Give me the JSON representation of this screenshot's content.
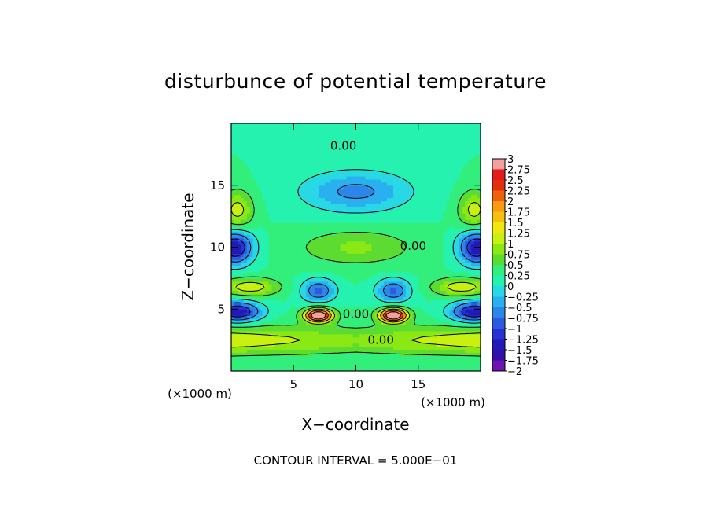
{
  "chart_data": {
    "type": "heatmap",
    "title": "disturbunce of potential temperature",
    "xlabel": "X−coordinate",
    "ylabel": "Z−coordinate",
    "x_unit": "(×1000 m)",
    "y_unit": "(×1000 m)",
    "xlim": [
      0,
      20
    ],
    "ylim": [
      0,
      20
    ],
    "x_ticks": [
      5,
      10,
      15
    ],
    "y_ticks": [
      5,
      10,
      15
    ],
    "x_tick_labels": [
      "5",
      "10",
      "15"
    ],
    "y_tick_labels": [
      "5",
      "10",
      "15"
    ],
    "footer": "CONTOUR INTERVAL = 5.000E−01",
    "contour_interval": 0.5,
    "colorbar": {
      "min": -2,
      "max": 3,
      "step": 0.25,
      "labels": [
        "3",
        "2.75",
        "2.5",
        "2.25",
        "2",
        "1.75",
        "1.5",
        "1.25",
        "1",
        "0.75",
        "0.5",
        "0.25",
        "0",
        "−0.25",
        "−0.5",
        "−0.75",
        "−1",
        "−1.25",
        "−1.5",
        "−1.75",
        "−2"
      ],
      "colors": [
        "#f4a0a0",
        "#e21c1c",
        "#e03010",
        "#ee6010",
        "#fa9a10",
        "#f6c010",
        "#f2e610",
        "#c8f010",
        "#8ae814",
        "#5cdc30",
        "#32ee7a",
        "#26f2b0",
        "#28d8e4",
        "#2ab0ee",
        "#2c86ea",
        "#2a5ce0",
        "#2632d4",
        "#221ab8",
        "#3010a8",
        "#6e12b4"
      ]
    },
    "contour_labels": [
      {
        "text": "0.00",
        "x": 9.0,
        "z": 18.2
      },
      {
        "text": "0.00",
        "x": 14.6,
        "z": 10.1
      },
      {
        "text": "0.00",
        "x": 10.0,
        "z": 4.6
      },
      {
        "text": "0.00",
        "x": 12.0,
        "z": 2.5
      }
    ],
    "features": [
      {
        "kind": "max",
        "x": 7.0,
        "z": 4.5,
        "peak": 3.0,
        "sx": 1.1,
        "sz": 0.55
      },
      {
        "kind": "max",
        "x": 13.0,
        "z": 4.5,
        "peak": 3.0,
        "sx": 1.1,
        "sz": 0.55
      },
      {
        "kind": "min",
        "x": 0.3,
        "z": 10.0,
        "peak": -1.75,
        "sx": 1.4,
        "sz": 1.3
      },
      {
        "kind": "min",
        "x": 19.7,
        "z": 10.0,
        "peak": -1.75,
        "sx": 1.4,
        "sz": 1.3
      },
      {
        "kind": "min",
        "x": 0.5,
        "z": 4.8,
        "peak": -1.75,
        "sx": 1.8,
        "sz": 0.8
      },
      {
        "kind": "min",
        "x": 19.5,
        "z": 4.8,
        "peak": -1.75,
        "sx": 1.8,
        "sz": 0.8
      },
      {
        "kind": "min",
        "x": 10.0,
        "z": 14.5,
        "peak": -0.85,
        "sx": 4.2,
        "sz": 1.6
      },
      {
        "kind": "min",
        "x": 7.0,
        "z": 6.5,
        "peak": -1.1,
        "sx": 1.3,
        "sz": 0.9
      },
      {
        "kind": "min",
        "x": 13.0,
        "z": 6.5,
        "peak": -1.1,
        "sx": 1.3,
        "sz": 0.9
      }
    ]
  }
}
